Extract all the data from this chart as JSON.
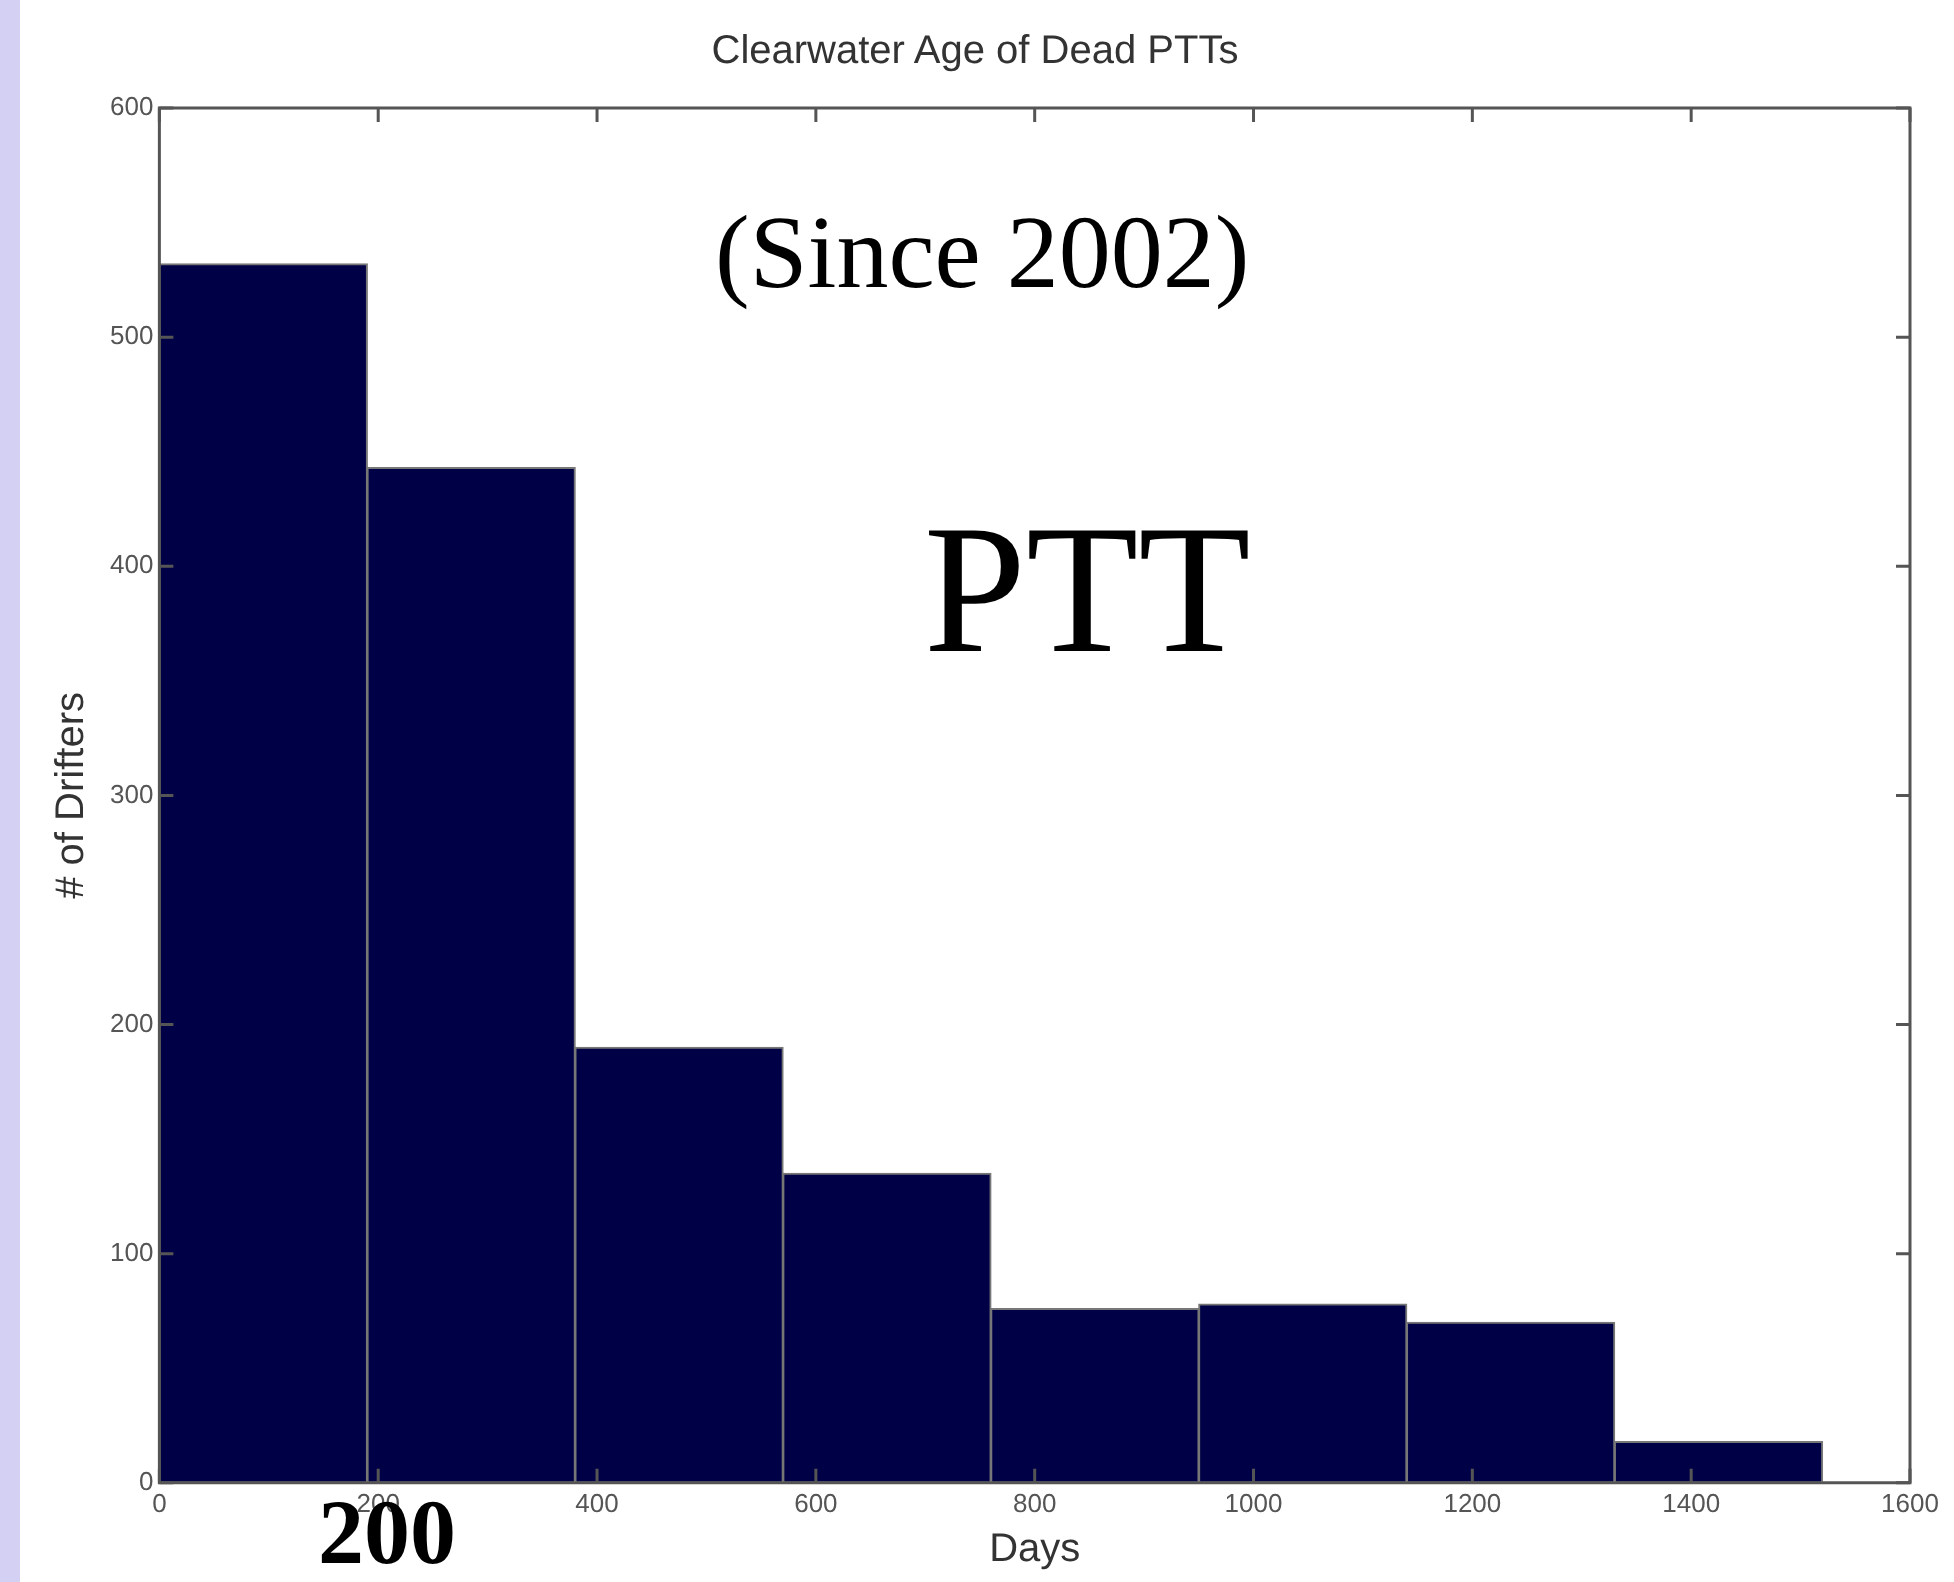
{
  "chart_data": {
    "type": "histogram",
    "title": "Clearwater Age of Dead PTTs",
    "xlabel": "Days",
    "ylabel": "# of Drifters",
    "bins": [
      0,
      190,
      380,
      570,
      760,
      950,
      1140,
      1330,
      1520
    ],
    "values": [
      532,
      443,
      190,
      135,
      76,
      78,
      70,
      18
    ],
    "color": "#000046",
    "xlim": [
      0,
      1600
    ],
    "xticks": [
      0,
      200,
      400,
      600,
      800,
      1000,
      1200,
      1400,
      1600
    ],
    "ylim": [
      0,
      600
    ],
    "yticks": [
      0,
      100,
      200,
      300,
      400,
      500,
      600
    ],
    "grid": false,
    "legend": false,
    "annotations": [
      "(Since 2002)",
      "PTT",
      "200"
    ]
  }
}
